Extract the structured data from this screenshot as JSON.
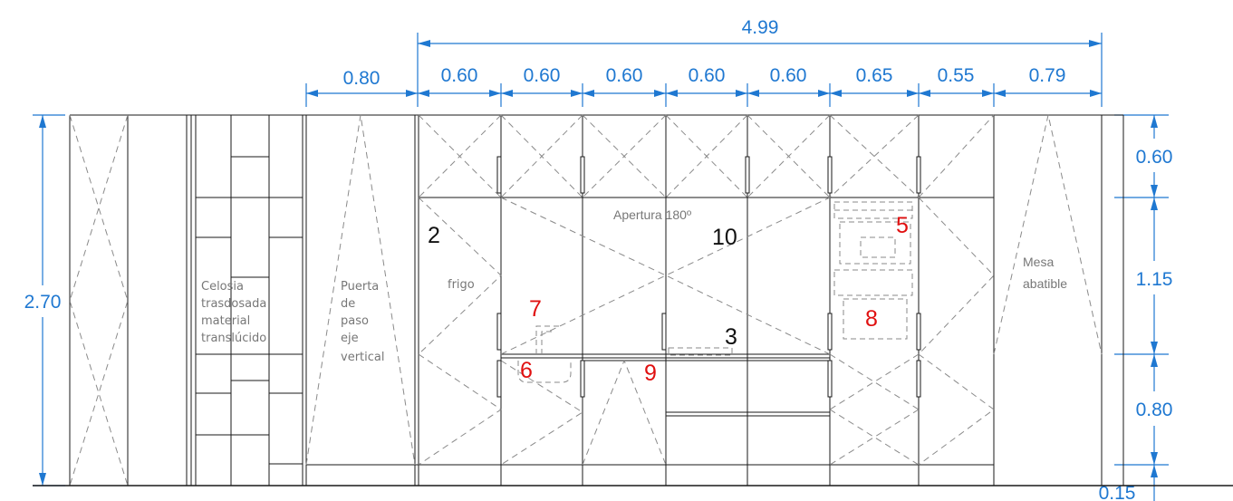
{
  "dimensions": {
    "total_top": "4.99",
    "top": [
      "0.80",
      "0.60",
      "0.60",
      "0.60",
      "0.60",
      "0.60",
      "0.65",
      "0.55",
      "0.79"
    ],
    "total_height": "2.70",
    "right": [
      "0.60",
      "1.15",
      "0.80",
      "0.15"
    ]
  },
  "labels": {
    "celosia": [
      "Celosia",
      "trasdosada",
      "material",
      "translúcido"
    ],
    "puerta": [
      "Puerta",
      "de",
      "paso",
      "eje",
      "vertical"
    ],
    "frigo": "frigo",
    "apertura": "Apertura 180º",
    "mesa": [
      "Mesa",
      "abatible"
    ]
  },
  "markers": {
    "m2": "2",
    "m10": "10",
    "m3": "3",
    "m5": "5",
    "m7": "7",
    "m8": "8",
    "m6": "6",
    "m9": "9"
  },
  "colors": {
    "dimension": "#1f78d1",
    "marker_red": "#e01010",
    "line": "#1a1a1a"
  }
}
